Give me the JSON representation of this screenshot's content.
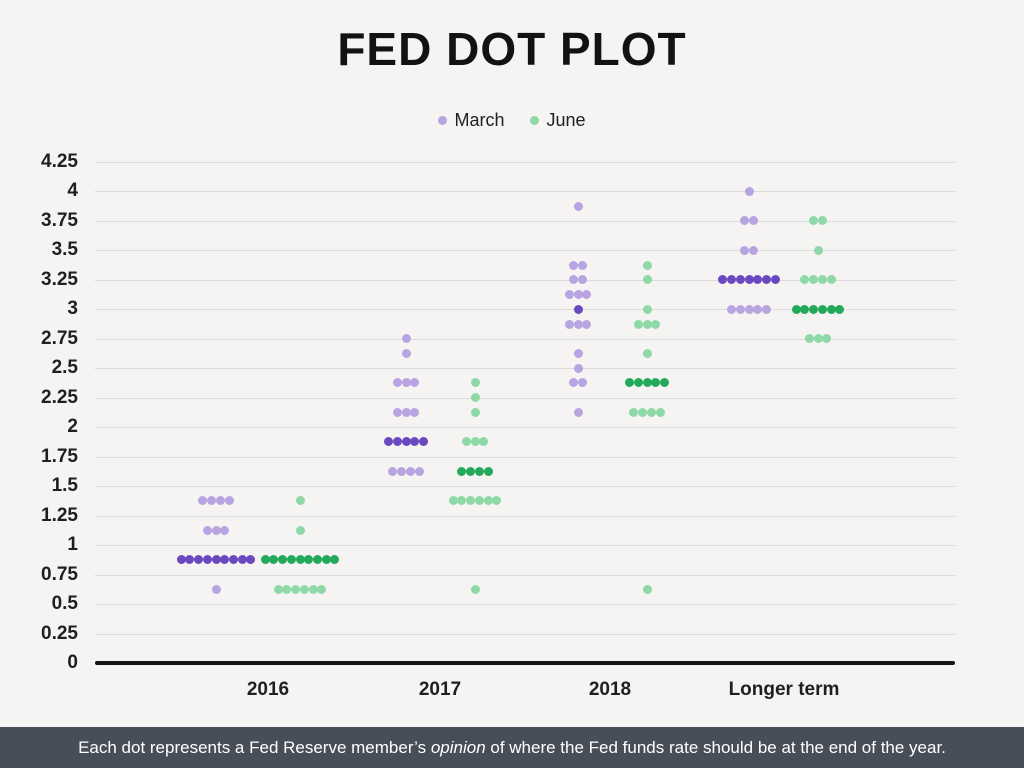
{
  "title": "FED DOT PLOT",
  "footer": {
    "pre": "Each dot represents a Fed Reserve member’s ",
    "em": "opinion",
    "post": " of where the Fed funds rate should be at the end of the year."
  },
  "colors": {
    "background": "#f5f4f3",
    "footer_bar": "#474e58",
    "gridline": "#dbdbdb",
    "axis": "#141414",
    "march_light": "#b7a4e0",
    "march_dark": "#6a48c0",
    "june_light": "#8fd8a7",
    "june_dark": "#23a95a"
  },
  "chart_data": {
    "type": "scatter",
    "title": "FED DOT PLOT",
    "xlabel": "",
    "ylabel": "",
    "ylim": [
      0,
      4.25
    ],
    "ytick_step": 0.25,
    "yticks": [
      "0",
      "0.25",
      "0.5",
      "0.75",
      "1",
      "1.25",
      "1.5",
      "1.75",
      "2",
      "2.25",
      "2.5",
      "2.75",
      "3",
      "3.25",
      "3.5",
      "3.75",
      "4",
      "4.25"
    ],
    "grid": true,
    "legend_position": "top-center",
    "categories": [
      "2016",
      "2017",
      "2018",
      "Longer term"
    ],
    "series": [
      {
        "name": "March",
        "color_light": "#b7a4e0",
        "color_dark": "#6a48c0",
        "groups": [
          [
            {
              "rate": 1.375,
              "count": 4
            },
            {
              "rate": 1.125,
              "count": 3
            },
            {
              "rate": 0.875,
              "count": 9,
              "median": true
            },
            {
              "rate": 0.625,
              "count": 1
            }
          ],
          [
            {
              "rate": 2.75,
              "count": 1
            },
            {
              "rate": 2.625,
              "count": 1
            },
            {
              "rate": 2.375,
              "count": 3
            },
            {
              "rate": 2.125,
              "count": 3
            },
            {
              "rate": 1.875,
              "count": 5,
              "median": true
            },
            {
              "rate": 1.625,
              "count": 4
            }
          ],
          [
            {
              "rate": 3.875,
              "count": 1
            },
            {
              "rate": 3.375,
              "count": 2
            },
            {
              "rate": 3.25,
              "count": 2
            },
            {
              "rate": 3.125,
              "count": 3
            },
            {
              "rate": 3.0,
              "count": 1,
              "median": true
            },
            {
              "rate": 2.875,
              "count": 3
            },
            {
              "rate": 2.625,
              "count": 1
            },
            {
              "rate": 2.5,
              "count": 1
            },
            {
              "rate": 2.375,
              "count": 2
            },
            {
              "rate": 2.125,
              "count": 1
            }
          ],
          [
            {
              "rate": 4.0,
              "count": 1
            },
            {
              "rate": 3.75,
              "count": 2
            },
            {
              "rate": 3.5,
              "count": 2
            },
            {
              "rate": 3.25,
              "count": 7,
              "median": true
            },
            {
              "rate": 3.0,
              "count": 5
            }
          ]
        ]
      },
      {
        "name": "June",
        "color_light": "#8fd8a7",
        "color_dark": "#23a95a",
        "groups": [
          [
            {
              "rate": 1.375,
              "count": 1
            },
            {
              "rate": 1.125,
              "count": 1
            },
            {
              "rate": 0.875,
              "count": 9,
              "median": true
            },
            {
              "rate": 0.625,
              "count": 6
            }
          ],
          [
            {
              "rate": 2.375,
              "count": 1
            },
            {
              "rate": 2.25,
              "count": 1
            },
            {
              "rate": 2.125,
              "count": 1
            },
            {
              "rate": 1.875,
              "count": 3
            },
            {
              "rate": 1.625,
              "count": 4,
              "median": true
            },
            {
              "rate": 1.375,
              "count": 6
            },
            {
              "rate": 0.625,
              "count": 1
            }
          ],
          [
            {
              "rate": 3.375,
              "count": 1
            },
            {
              "rate": 3.25,
              "count": 1
            },
            {
              "rate": 3.0,
              "count": 1
            },
            {
              "rate": 2.875,
              "count": 3
            },
            {
              "rate": 2.625,
              "count": 1
            },
            {
              "rate": 2.375,
              "count": 5,
              "median": true
            },
            {
              "rate": 2.125,
              "count": 4
            },
            {
              "rate": 0.625,
              "count": 1
            }
          ],
          [
            {
              "rate": 3.75,
              "count": 2
            },
            {
              "rate": 3.5,
              "count": 1
            },
            {
              "rate": 3.25,
              "count": 4
            },
            {
              "rate": 3.0,
              "count": 6,
              "median": true
            },
            {
              "rate": 2.75,
              "count": 3
            }
          ]
        ]
      }
    ],
    "layout_hints": {
      "x_label_centers": [
        268,
        440,
        610,
        784
      ],
      "series_column_centers": {
        "March": [
          216,
          406,
          578,
          749
        ],
        "June": [
          300,
          475,
          647,
          818
        ]
      }
    }
  }
}
